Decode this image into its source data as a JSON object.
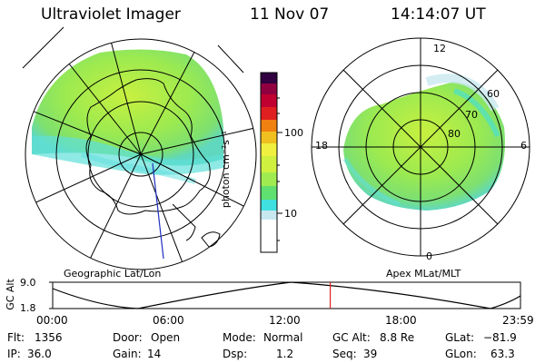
{
  "header": {
    "instrument": "Ultraviolet Imager",
    "date": "11 Nov 07",
    "time": "14:14:07 UT"
  },
  "geographic_panel": {
    "caption": "Geographic Lat/Lon"
  },
  "colorbar": {
    "label": "photon cm⁻²s⁻¹",
    "ticks": [
      "100",
      "10"
    ],
    "scale": "log",
    "colors": [
      "#ffffff",
      "#c8e8f0",
      "#40e0e0",
      "#80e860",
      "#c8f040",
      "#f0f040",
      "#f0c020",
      "#f08010",
      "#e02020",
      "#c00030",
      "#900040",
      "#300040"
    ]
  },
  "magnetic_panel": {
    "caption": "Apex MLat/MLT",
    "mlt_labels": {
      "top": "12",
      "left": "18",
      "right": "6",
      "bottom": "0"
    },
    "mlat_labels": [
      "60",
      "70",
      "80"
    ]
  },
  "altitude_plot": {
    "ylabel": "GC Alt",
    "yticks": [
      "9.0",
      "1.8"
    ],
    "xticks": [
      "00:00",
      "06:00",
      "12:00",
      "18:00",
      "23:59"
    ],
    "current_time_marker_hours": 14.24,
    "marker_color": "#e02020"
  },
  "info": {
    "flt_label": "Flt:",
    "flt_value": "1356",
    "ip_label": "IP:",
    "ip_value": "36.0",
    "door_label": "Door:",
    "door_value": "Open",
    "gain_label": "Gain:",
    "gain_value": "14",
    "mode_label": "Mode:",
    "mode_value": "Normal",
    "dsp_label": "Dsp:",
    "dsp_value": "1.2",
    "gcalt_label": "GC Alt:",
    "gcalt_value": "8.8 Re",
    "seq_label": "Seq:",
    "seq_value": "39",
    "glat_label": "GLat:",
    "glat_value": "−81.9",
    "glon_label": "GLon:",
    "glon_value": "63.3"
  }
}
